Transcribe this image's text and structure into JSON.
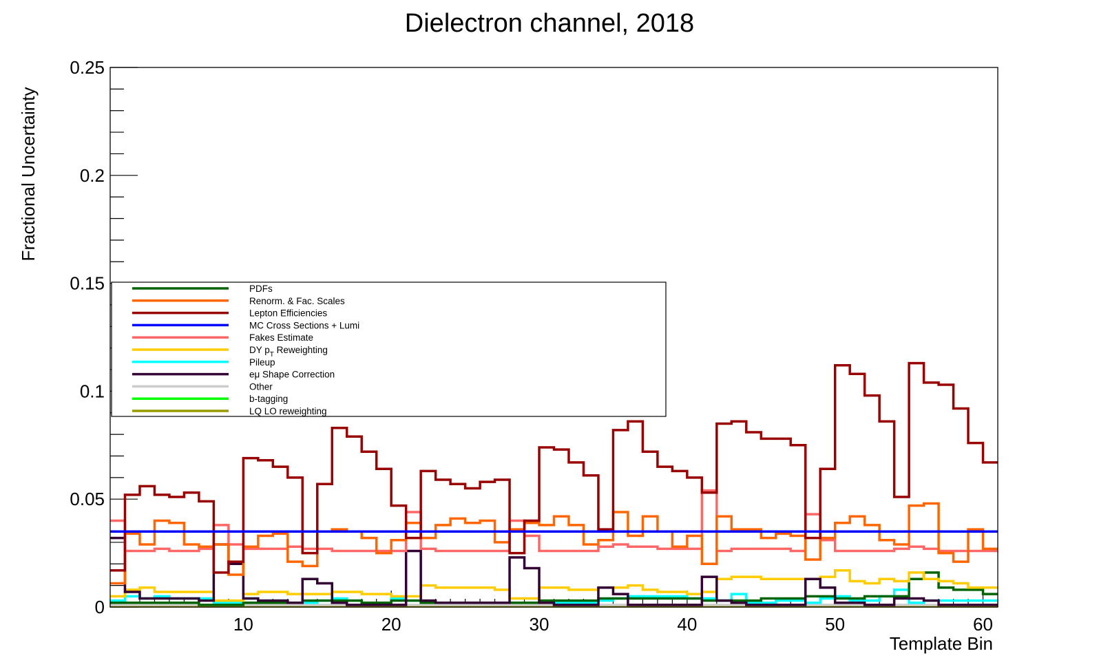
{
  "chart_data": {
    "type": "line",
    "style": "step",
    "title": "Dielectron channel, 2018",
    "xlabel": "Template Bin",
    "ylabel": "Fractional Uncertainty",
    "xlim": [
      1,
      61
    ],
    "ylim": [
      0,
      0.25
    ],
    "x_ticks": [
      10,
      20,
      30,
      40,
      50,
      60
    ],
    "y_ticks": [
      "0",
      "0.05",
      "0.1",
      "0.15",
      "0.2",
      "0.25"
    ],
    "grid": false,
    "legend_position": "center-left",
    "series": [
      {
        "name": "PDFs",
        "color": "#006400",
        "values": [
          0.002,
          0.002,
          0.002,
          0.002,
          0.002,
          0.002,
          0.001,
          0.001,
          0.001,
          0.002,
          0.002,
          0.002,
          0.002,
          0.003,
          0.003,
          0.003,
          0.003,
          0.002,
          0.002,
          0.003,
          0.003,
          0.002,
          0.002,
          0.002,
          0.002,
          0.002,
          0.002,
          0.002,
          0.002,
          0.003,
          0.003,
          0.003,
          0.003,
          0.004,
          0.004,
          0.004,
          0.004,
          0.004,
          0.004,
          0.004,
          0.003,
          0.003,
          0.003,
          0.003,
          0.004,
          0.004,
          0.004,
          0.005,
          0.005,
          0.004,
          0.004,
          0.005,
          0.005,
          0.005,
          0.013,
          0.016,
          0.009,
          0.008,
          0.008,
          0.006
        ]
      },
      {
        "name": "Renorm. & Fac. Scales",
        "color": "#ff6600",
        "values": [
          0.011,
          0.034,
          0.029,
          0.04,
          0.039,
          0.029,
          0.028,
          0.029,
          0.015,
          0.028,
          0.033,
          0.034,
          0.021,
          0.019,
          0.035,
          0.036,
          0.035,
          0.032,
          0.025,
          0.031,
          0.039,
          0.032,
          0.038,
          0.041,
          0.039,
          0.04,
          0.03,
          0.036,
          0.039,
          0.038,
          0.042,
          0.038,
          0.029,
          0.031,
          0.044,
          0.033,
          0.042,
          0.035,
          0.028,
          0.033,
          0.02,
          0.042,
          0.036,
          0.036,
          0.032,
          0.034,
          0.033,
          0.022,
          0.032,
          0.039,
          0.042,
          0.038,
          0.031,
          0.029,
          0.047,
          0.048,
          0.025,
          0.021,
          0.036,
          0.027
        ]
      },
      {
        "name": "Lepton Efficiencies",
        "color": "#990000",
        "values": [
          0.017,
          0.052,
          0.056,
          0.052,
          0.051,
          0.053,
          0.049,
          0.016,
          0.021,
          0.069,
          0.068,
          0.065,
          0.06,
          0.025,
          0.057,
          0.083,
          0.079,
          0.072,
          0.064,
          0.047,
          0.032,
          0.063,
          0.059,
          0.057,
          0.055,
          0.058,
          0.059,
          0.025,
          0.04,
          0.074,
          0.073,
          0.067,
          0.061,
          0.036,
          0.082,
          0.086,
          0.072,
          0.065,
          0.063,
          0.06,
          0.053,
          0.085,
          0.086,
          0.081,
          0.078,
          0.078,
          0.075,
          0.032,
          0.064,
          0.112,
          0.108,
          0.098,
          0.086,
          0.051,
          0.113,
          0.104,
          0.103,
          0.092,
          0.076,
          0.067
        ]
      },
      {
        "name": "MC Cross Sections + Lumi",
        "color": "#0000ff",
        "values": [
          0.035,
          0.035,
          0.035,
          0.035,
          0.035,
          0.035,
          0.035,
          0.035,
          0.035,
          0.035,
          0.035,
          0.035,
          0.035,
          0.035,
          0.035,
          0.035,
          0.035,
          0.035,
          0.035,
          0.035,
          0.035,
          0.035,
          0.035,
          0.035,
          0.035,
          0.035,
          0.035,
          0.035,
          0.035,
          0.035,
          0.035,
          0.035,
          0.035,
          0.035,
          0.035,
          0.035,
          0.035,
          0.035,
          0.035,
          0.035,
          0.035,
          0.035,
          0.035,
          0.035,
          0.035,
          0.035,
          0.035,
          0.035,
          0.035,
          0.035,
          0.035,
          0.035,
          0.035,
          0.035,
          0.035,
          0.035,
          0.035,
          0.035,
          0.035,
          0.035
        ]
      },
      {
        "name": "Fakes Estimate",
        "color": "#ff6666",
        "values": [
          0.04,
          0.026,
          0.026,
          0.027,
          0.026,
          0.026,
          0.027,
          0.038,
          0.029,
          0.027,
          0.027,
          0.027,
          0.028,
          0.027,
          0.027,
          0.026,
          0.026,
          0.026,
          0.026,
          0.026,
          0.044,
          0.027,
          0.026,
          0.026,
          0.026,
          0.026,
          0.026,
          0.04,
          0.033,
          0.026,
          0.026,
          0.026,
          0.026,
          0.028,
          0.029,
          0.028,
          0.028,
          0.027,
          0.027,
          0.027,
          0.054,
          0.026,
          0.027,
          0.027,
          0.027,
          0.027,
          0.026,
          0.043,
          0.031,
          0.026,
          0.026,
          0.026,
          0.026,
          0.027,
          0.028,
          0.027,
          0.026,
          0.026,
          0.026,
          0.026
        ]
      },
      {
        "name": "DY p_T Reweighting",
        "color": "#ffcc00",
        "values": [
          0.005,
          0.008,
          0.009,
          0.007,
          0.007,
          0.007,
          0.007,
          0.003,
          0.003,
          0.006,
          0.007,
          0.007,
          0.006,
          0.006,
          0.006,
          0.007,
          0.007,
          0.006,
          0.006,
          0.005,
          0.005,
          0.01,
          0.009,
          0.009,
          0.009,
          0.009,
          0.008,
          0.004,
          0.004,
          0.009,
          0.009,
          0.008,
          0.008,
          0.009,
          0.009,
          0.01,
          0.008,
          0.007,
          0.007,
          0.006,
          0.007,
          0.013,
          0.014,
          0.014,
          0.013,
          0.013,
          0.013,
          0.013,
          0.014,
          0.017,
          0.012,
          0.011,
          0.013,
          0.012,
          0.016,
          0.013,
          0.012,
          0.011,
          0.009,
          0.009
        ]
      },
      {
        "name": "Pileup",
        "color": "#00ffff",
        "values": [
          0.003,
          0.005,
          0.004,
          0.005,
          0.004,
          0.004,
          0.004,
          0.002,
          0.002,
          0.004,
          0.003,
          0.003,
          0.002,
          0.002,
          0.003,
          0.004,
          0.003,
          0.002,
          0.002,
          0.004,
          0.003,
          0.002,
          0.002,
          0.002,
          0.002,
          0.002,
          0.002,
          0.002,
          0.002,
          0.002,
          0.002,
          0.002,
          0.002,
          0.003,
          0.004,
          0.005,
          0.005,
          0.005,
          0.005,
          0.004,
          0.004,
          0.003,
          0.006,
          0.002,
          0.002,
          0.003,
          0.003,
          0.002,
          0.004,
          0.005,
          0.003,
          0.003,
          0.005,
          0.008,
          0.002,
          0.003,
          0.003,
          0.003,
          0.003,
          0.003
        ]
      },
      {
        "name": "eμ Shape Correction",
        "color": "#330033",
        "values": [
          0.032,
          0.007,
          0.004,
          0.004,
          0.004,
          0.004,
          0.003,
          0.029,
          0.02,
          0.004,
          0.003,
          0.003,
          0.002,
          0.013,
          0.011,
          0.002,
          0.001,
          0.001,
          0.001,
          0.001,
          0.026,
          0.003,
          0.002,
          0.002,
          0.002,
          0.002,
          0.002,
          0.023,
          0.018,
          0.002,
          0.001,
          0.001,
          0.001,
          0.009,
          0.006,
          0.001,
          0.001,
          0.001,
          0.001,
          0.001,
          0.014,
          0.003,
          0.002,
          0.001,
          0.001,
          0.001,
          0.001,
          0.013,
          0.009,
          0.002,
          0.002,
          0.001,
          0.001,
          0.004,
          0.004,
          0.003,
          0.001,
          0.001,
          0.001,
          0.001
        ]
      },
      {
        "name": "Other",
        "color": "#cccccc",
        "values": [
          0.001,
          0.001,
          0.001,
          0.001,
          0.001,
          0.001,
          0.001,
          0.001,
          0.001,
          0.001,
          0.001,
          0.001,
          0.001,
          0.001,
          0.001,
          0.001,
          0.001,
          0.001,
          0.001,
          0.001,
          0.001,
          0.001,
          0.001,
          0.001,
          0.001,
          0.001,
          0.001,
          0.001,
          0.001,
          0.001,
          0.001,
          0.001,
          0.001,
          0.001,
          0.001,
          0.001,
          0.001,
          0.001,
          0.001,
          0.001,
          0.001,
          0.001,
          0.001,
          0.001,
          0.001,
          0.001,
          0.001,
          0.001,
          0.001,
          0.001,
          0.001,
          0.001,
          0.001,
          0.001,
          0.001,
          0.001,
          0.001,
          0.001,
          0.001,
          0.001
        ]
      },
      {
        "name": "b-tagging",
        "color": "#00ff00",
        "values": [
          0.0005,
          0.0005,
          0.0005,
          0.0005,
          0.0005,
          0.0005,
          0.0005,
          0.0005,
          0.0005,
          0.0005,
          0.0005,
          0.0005,
          0.0005,
          0.0005,
          0.0005,
          0.0005,
          0.0005,
          0.0005,
          0.0005,
          0.0005,
          0.0005,
          0.0005,
          0.0005,
          0.0005,
          0.0005,
          0.0005,
          0.0005,
          0.0005,
          0.0005,
          0.0005,
          0.0005,
          0.0005,
          0.0005,
          0.0005,
          0.0005,
          0.0005,
          0.0005,
          0.0005,
          0.0005,
          0.0005,
          0.0005,
          0.0005,
          0.0005,
          0.0005,
          0.0005,
          0.0005,
          0.0005,
          0.0005,
          0.0005,
          0.0005,
          0.0005,
          0.0005,
          0.0005,
          0.0005,
          0.0005,
          0.0005,
          0.0005,
          0.0005,
          0.0005,
          0.0005
        ]
      },
      {
        "name": "LQ LO reweighting",
        "color": "#999900",
        "values": [
          0.0003,
          0.0003,
          0.0003,
          0.0003,
          0.0003,
          0.0003,
          0.0003,
          0.0003,
          0.0003,
          0.0003,
          0.0003,
          0.0003,
          0.0003,
          0.0003,
          0.0003,
          0.0003,
          0.0003,
          0.0003,
          0.0003,
          0.0003,
          0.0003,
          0.0003,
          0.0003,
          0.0003,
          0.0003,
          0.0003,
          0.0003,
          0.0003,
          0.0003,
          0.0003,
          0.0003,
          0.0003,
          0.0003,
          0.0003,
          0.0003,
          0.0003,
          0.0003,
          0.0003,
          0.0003,
          0.0003,
          0.0003,
          0.0003,
          0.0003,
          0.0003,
          0.0003,
          0.0003,
          0.0003,
          0.0003,
          0.0003,
          0.0003,
          0.0003,
          0.0003,
          0.0003,
          0.0003,
          0.0003,
          0.0003,
          0.0003,
          0.0003,
          0.0003,
          0.0003
        ]
      }
    ]
  }
}
